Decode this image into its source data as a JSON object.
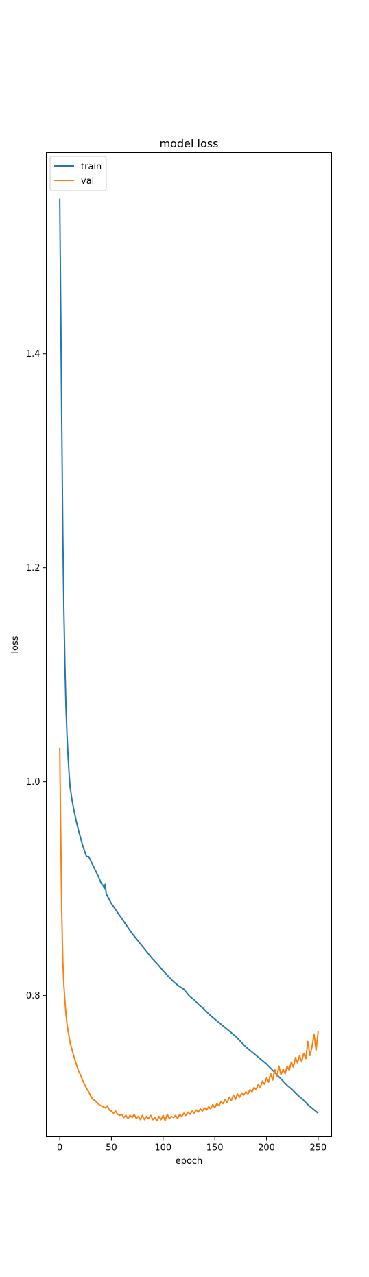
{
  "chart_data": {
    "type": "line",
    "title": "model loss",
    "xlabel": "epoch",
    "ylabel": "loss",
    "xlim": [
      -13,
      263
    ],
    "ylim": [
      0.668,
      1.588
    ],
    "xticks": [
      0,
      50,
      100,
      150,
      200,
      250
    ],
    "yticks": [
      0.8,
      1.0,
      1.2,
      1.4
    ],
    "ytick_labels": [
      "0.8",
      "1.0",
      "1.2",
      "1.4"
    ],
    "legend": "upper-left",
    "grid": false,
    "series": [
      {
        "name": "train",
        "color": "#1f77b4",
        "points": [
          [
            0,
            1.545
          ],
          [
            1,
            1.44
          ],
          [
            2,
            1.33
          ],
          [
            3,
            1.23
          ],
          [
            4,
            1.16
          ],
          [
            5,
            1.11
          ],
          [
            6,
            1.07
          ],
          [
            7,
            1.045
          ],
          [
            8,
            1.025
          ],
          [
            9,
            1.008
          ],
          [
            10,
            0.995
          ],
          [
            12,
            0.982
          ],
          [
            14,
            0.972
          ],
          [
            16,
            0.963
          ],
          [
            18,
            0.955
          ],
          [
            20,
            0.948
          ],
          [
            22,
            0.941
          ],
          [
            24,
            0.935
          ],
          [
            26,
            0.93
          ],
          [
            28,
            0.93
          ],
          [
            30,
            0.926
          ],
          [
            32,
            0.922
          ],
          [
            34,
            0.918
          ],
          [
            36,
            0.914
          ],
          [
            38,
            0.91
          ],
          [
            40,
            0.905
          ],
          [
            42,
            0.903
          ],
          [
            43,
            0.9
          ],
          [
            44,
            0.904
          ],
          [
            45,
            0.895
          ],
          [
            50,
            0.886
          ],
          [
            55,
            0.879
          ],
          [
            60,
            0.872
          ],
          [
            65,
            0.865
          ],
          [
            70,
            0.858
          ],
          [
            75,
            0.852
          ],
          [
            80,
            0.846
          ],
          [
            85,
            0.84
          ],
          [
            90,
            0.834
          ],
          [
            95,
            0.829
          ],
          [
            100,
            0.823
          ],
          [
            105,
            0.818
          ],
          [
            110,
            0.813
          ],
          [
            115,
            0.809
          ],
          [
            120,
            0.806
          ],
          [
            125,
            0.8
          ],
          [
            130,
            0.796
          ],
          [
            135,
            0.791
          ],
          [
            140,
            0.787
          ],
          [
            145,
            0.782
          ],
          [
            150,
            0.778
          ],
          [
            155,
            0.774
          ],
          [
            160,
            0.77
          ],
          [
            165,
            0.766
          ],
          [
            170,
            0.762
          ],
          [
            175,
            0.757
          ],
          [
            180,
            0.752
          ],
          [
            185,
            0.748
          ],
          [
            190,
            0.744
          ],
          [
            195,
            0.74
          ],
          [
            200,
            0.736
          ],
          [
            205,
            0.731
          ],
          [
            210,
            0.726
          ],
          [
            215,
            0.721
          ],
          [
            220,
            0.716
          ],
          [
            225,
            0.712
          ],
          [
            230,
            0.707
          ],
          [
            235,
            0.703
          ],
          [
            240,
            0.698
          ],
          [
            245,
            0.694
          ],
          [
            250,
            0.69
          ]
        ]
      },
      {
        "name": "val",
        "color": "#ff7f0e",
        "points": [
          [
            0,
            1.032
          ],
          [
            1,
            0.95
          ],
          [
            2,
            0.875
          ],
          [
            3,
            0.832
          ],
          [
            4,
            0.81
          ],
          [
            5,
            0.795
          ],
          [
            6,
            0.783
          ],
          [
            7,
            0.774
          ],
          [
            8,
            0.767
          ],
          [
            9,
            0.762
          ],
          [
            10,
            0.756
          ],
          [
            12,
            0.749
          ],
          [
            14,
            0.742
          ],
          [
            16,
            0.736
          ],
          [
            18,
            0.73
          ],
          [
            20,
            0.726
          ],
          [
            22,
            0.721
          ],
          [
            24,
            0.717
          ],
          [
            26,
            0.713
          ],
          [
            28,
            0.71
          ],
          [
            30,
            0.706
          ],
          [
            32,
            0.703
          ],
          [
            34,
            0.702
          ],
          [
            36,
            0.7
          ],
          [
            38,
            0.698
          ],
          [
            40,
            0.697
          ],
          [
            42,
            0.696
          ],
          [
            44,
            0.695
          ],
          [
            46,
            0.697
          ],
          [
            48,
            0.693
          ],
          [
            50,
            0.692
          ],
          [
            52,
            0.69
          ],
          [
            54,
            0.692
          ],
          [
            56,
            0.689
          ],
          [
            58,
            0.688
          ],
          [
            60,
            0.689
          ],
          [
            62,
            0.686
          ],
          [
            64,
            0.688
          ],
          [
            66,
            0.685
          ],
          [
            68,
            0.688
          ],
          [
            70,
            0.686
          ],
          [
            72,
            0.689
          ],
          [
            74,
            0.685
          ],
          [
            76,
            0.687
          ],
          [
            78,
            0.684
          ],
          [
            80,
            0.688
          ],
          [
            82,
            0.684
          ],
          [
            84,
            0.687
          ],
          [
            86,
            0.685
          ],
          [
            88,
            0.688
          ],
          [
            90,
            0.684
          ],
          [
            92,
            0.686
          ],
          [
            94,
            0.683
          ],
          [
            96,
            0.687
          ],
          [
            98,
            0.684
          ],
          [
            100,
            0.688
          ],
          [
            102,
            0.683
          ],
          [
            104,
            0.689
          ],
          [
            106,
            0.685
          ],
          [
            108,
            0.687
          ],
          [
            110,
            0.686
          ],
          [
            112,
            0.688
          ],
          [
            114,
            0.685
          ],
          [
            116,
            0.689
          ],
          [
            118,
            0.687
          ],
          [
            120,
            0.69
          ],
          [
            122,
            0.688
          ],
          [
            124,
            0.691
          ],
          [
            126,
            0.689
          ],
          [
            128,
            0.692
          ],
          [
            130,
            0.69
          ],
          [
            132,
            0.693
          ],
          [
            134,
            0.691
          ],
          [
            136,
            0.694
          ],
          [
            138,
            0.692
          ],
          [
            140,
            0.695
          ],
          [
            142,
            0.693
          ],
          [
            144,
            0.696
          ],
          [
            146,
            0.694
          ],
          [
            148,
            0.698
          ],
          [
            150,
            0.695
          ],
          [
            152,
            0.699
          ],
          [
            154,
            0.697
          ],
          [
            156,
            0.701
          ],
          [
            158,
            0.699
          ],
          [
            160,
            0.703
          ],
          [
            162,
            0.7
          ],
          [
            164,
            0.705
          ],
          [
            166,
            0.702
          ],
          [
            168,
            0.707
          ],
          [
            170,
            0.703
          ],
          [
            172,
            0.708
          ],
          [
            174,
            0.705
          ],
          [
            176,
            0.709
          ],
          [
            178,
            0.707
          ],
          [
            180,
            0.71
          ],
          [
            182,
            0.708
          ],
          [
            184,
            0.712
          ],
          [
            186,
            0.71
          ],
          [
            188,
            0.714
          ],
          [
            190,
            0.712
          ],
          [
            192,
            0.717
          ],
          [
            194,
            0.714
          ],
          [
            196,
            0.72
          ],
          [
            198,
            0.717
          ],
          [
            200,
            0.723
          ],
          [
            202,
            0.719
          ],
          [
            204,
            0.727
          ],
          [
            206,
            0.721
          ],
          [
            208,
            0.731
          ],
          [
            210,
            0.724
          ],
          [
            212,
            0.734
          ],
          [
            214,
            0.726
          ],
          [
            216,
            0.731
          ],
          [
            218,
            0.727
          ],
          [
            220,
            0.734
          ],
          [
            222,
            0.73
          ],
          [
            224,
            0.738
          ],
          [
            226,
            0.733
          ],
          [
            228,
            0.742
          ],
          [
            230,
            0.737
          ],
          [
            232,
            0.744
          ],
          [
            234,
            0.738
          ],
          [
            236,
            0.746
          ],
          [
            238,
            0.741
          ],
          [
            240,
            0.757
          ],
          [
            242,
            0.744
          ],
          [
            244,
            0.752
          ],
          [
            246,
            0.764
          ],
          [
            248,
            0.749
          ],
          [
            250,
            0.767
          ]
        ]
      }
    ]
  }
}
